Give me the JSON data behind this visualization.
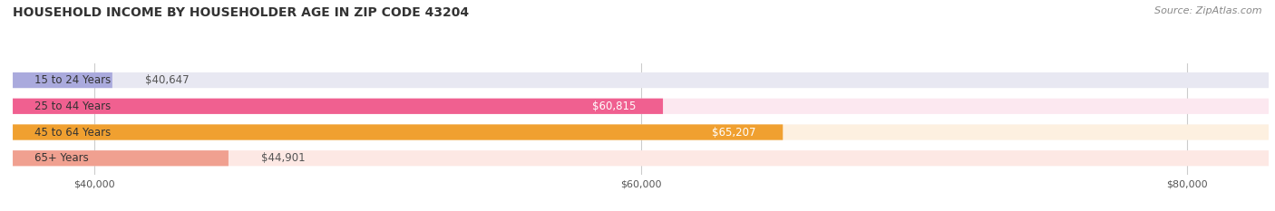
{
  "title": "HOUSEHOLD INCOME BY HOUSEHOLDER AGE IN ZIP CODE 43204",
  "source": "Source: ZipAtlas.com",
  "categories": [
    "15 to 24 Years",
    "25 to 44 Years",
    "45 to 64 Years",
    "65+ Years"
  ],
  "values": [
    40647,
    60815,
    65207,
    44901
  ],
  "labels": [
    "$40,647",
    "$60,815",
    "$65,207",
    "$44,901"
  ],
  "bar_colors": [
    "#aaaadd",
    "#f06090",
    "#f0a030",
    "#f0a090"
  ],
  "bar_bg_colors": [
    "#e8e8f2",
    "#fce8f0",
    "#fdf0e0",
    "#fde8e4"
  ],
  "x_min": 37000,
  "x_max": 83000,
  "x_ticks": [
    40000,
    60000,
    80000
  ],
  "x_tick_labels": [
    "$40,000",
    "$60,000",
    "$80,000"
  ],
  "label_inside_threshold": 55000,
  "label_color_inside": "#ffffff",
  "label_color_outside": "#555555",
  "title_fontsize": 10,
  "source_fontsize": 8,
  "bar_label_fontsize": 8.5,
  "category_label_fontsize": 8.5,
  "tick_fontsize": 8,
  "background_color": "#ffffff",
  "bar_height": 0.6
}
